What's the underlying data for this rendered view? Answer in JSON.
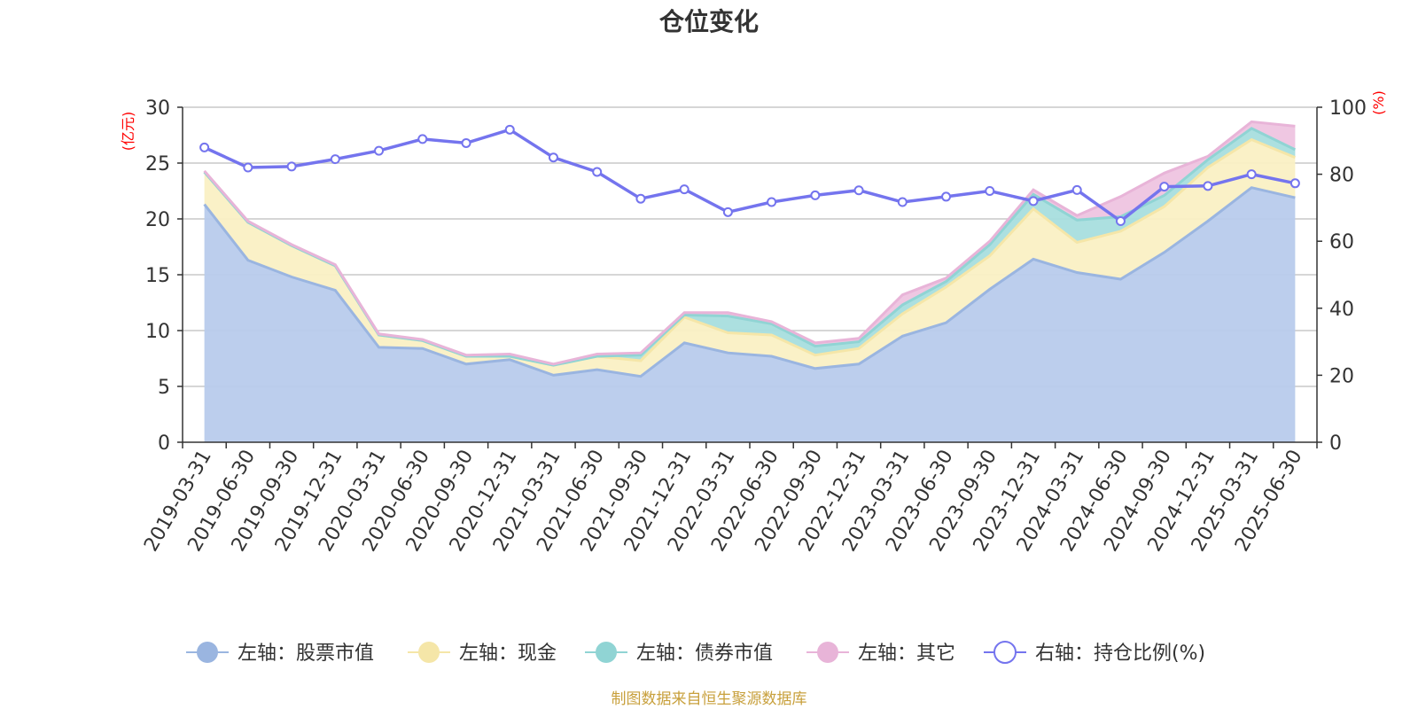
{
  "chart_data": {
    "type": "area",
    "title": "仓位变化",
    "left_axis_unit": "(亿元)",
    "right_axis_unit": "(%)",
    "x": [
      "2019-03-31",
      "2019-06-30",
      "2019-09-30",
      "2019-12-31",
      "2020-03-31",
      "2020-06-30",
      "2020-09-30",
      "2020-12-31",
      "2021-03-31",
      "2021-06-30",
      "2021-09-30",
      "2021-12-31",
      "2022-03-31",
      "2022-06-30",
      "2022-09-30",
      "2022-12-31",
      "2023-03-31",
      "2023-06-30",
      "2023-09-30",
      "2023-12-31",
      "2024-03-31",
      "2024-06-30",
      "2024-09-30",
      "2024-12-31",
      "2025-03-31",
      "2025-06-30"
    ],
    "left_ylim": [
      0,
      30
    ],
    "left_yticks": [
      0,
      5,
      10,
      15,
      20,
      25,
      30
    ],
    "right_ylim": [
      0,
      100
    ],
    "right_yticks": [
      0,
      20,
      40,
      60,
      80,
      100
    ],
    "grid": true,
    "legend_position": "bottom",
    "series": [
      {
        "name": "左轴：股票市值",
        "axis": "left",
        "color": "#9ab5e0",
        "fill": "#b8cbec",
        "values": [
          21.3,
          16.3,
          14.8,
          13.6,
          8.5,
          8.4,
          7.0,
          7.4,
          6.0,
          6.5,
          5.9,
          8.9,
          8.0,
          7.7,
          6.6,
          7.0,
          9.5,
          10.7,
          13.7,
          16.4,
          15.2,
          14.6,
          17.0,
          19.8,
          22.8,
          21.9
        ]
      },
      {
        "name": "左轴：现金",
        "axis": "left",
        "color": "#f5e6a8",
        "fill": "#faf0c4",
        "values": [
          2.9,
          3.4,
          2.8,
          2.2,
          1.1,
          0.7,
          0.7,
          0.3,
          0.9,
          1.2,
          1.4,
          2.3,
          1.8,
          1.9,
          1.2,
          1.4,
          2.0,
          3.2,
          3.0,
          4.5,
          2.7,
          4.3,
          4.1,
          4.8,
          4.3,
          3.6
        ]
      },
      {
        "name": "左轴：债券市值",
        "axis": "left",
        "color": "#90d4d4",
        "fill": "#a8dede",
        "values": [
          0.0,
          0.0,
          0.0,
          0.0,
          0.0,
          0.0,
          0.0,
          0.0,
          0.0,
          0.0,
          0.5,
          0.2,
          1.5,
          1.0,
          0.8,
          0.6,
          0.8,
          0.5,
          1.0,
          1.3,
          2.0,
          1.3,
          1.0,
          0.7,
          1.0,
          0.7
        ]
      },
      {
        "name": "左轴：其它",
        "axis": "left",
        "color": "#e8b4d8",
        "fill": "#eec4e0",
        "values": [
          0.1,
          0.1,
          0.1,
          0.1,
          0.1,
          0.1,
          0.1,
          0.2,
          0.1,
          0.2,
          0.2,
          0.2,
          0.3,
          0.2,
          0.3,
          0.3,
          0.9,
          0.3,
          0.3,
          0.4,
          0.4,
          1.8,
          2.0,
          0.3,
          0.6,
          2.1
        ]
      },
      {
        "name": "右轴：持仓比例(%)",
        "axis": "right",
        "color": "#7474ee",
        "values": [
          88,
          82,
          82.3,
          84.5,
          87,
          90.5,
          89.3,
          93.3,
          85,
          80.7,
          72.7,
          75.5,
          68.7,
          71.7,
          73.7,
          75.2,
          71.7,
          73.3,
          75,
          72,
          75.3,
          66,
          76.3,
          76.5,
          80,
          77.3
        ]
      }
    ]
  },
  "source_note": "制图数据来自恒生聚源数据库"
}
